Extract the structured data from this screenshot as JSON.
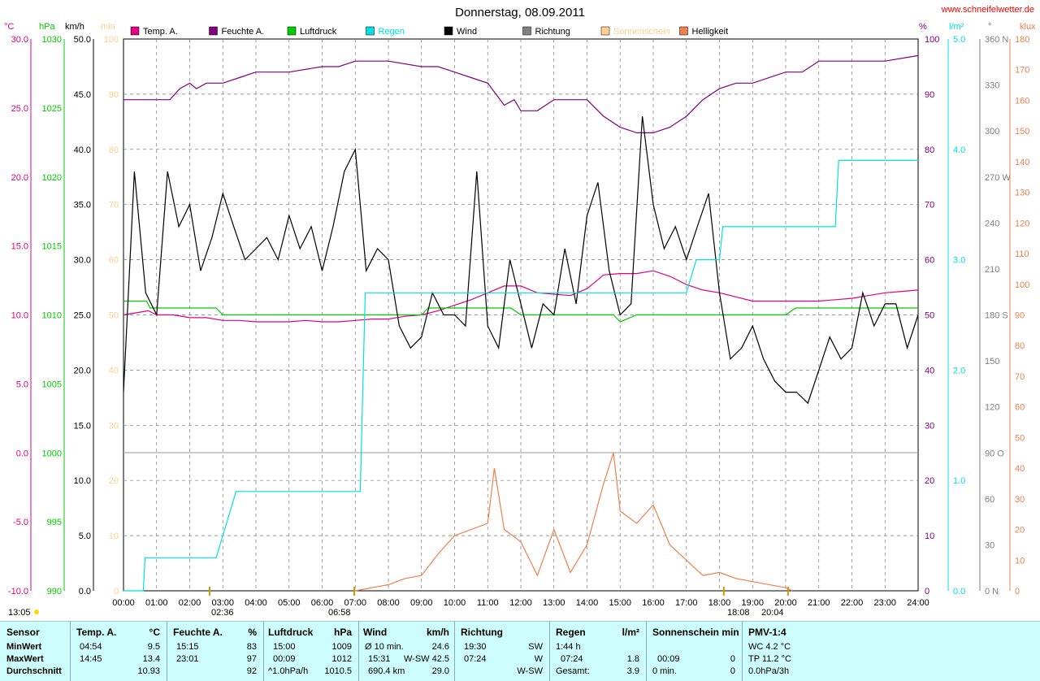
{
  "title": "Donnerstag, 08.09.2011",
  "site": "www.schneifelwetter.de",
  "colors": {
    "temp": "#e0007f",
    "humidity": "#800080",
    "pressure": "#00cc00",
    "rain": "#00e0e0",
    "wind": "#000000",
    "direction": "#808080",
    "sunshine": "#ffd090",
    "brightness": "#f07f4f"
  },
  "units": {
    "temp": "°C",
    "hpa": "hPa",
    "kmh": "km/h",
    "min": "min",
    "pct": "%",
    "lm2": "l/m²",
    "deg": "°",
    "klux": "klux"
  },
  "legend": [
    "Temp. A.",
    "Feuchte A.",
    "Luftdruck",
    "Regen",
    "Wind",
    "Richtung",
    "Sonnenschein",
    "Helligkeit"
  ],
  "axes": {
    "temp": [
      "30.0",
      "25.0",
      "20.0",
      "15.0",
      "10.0",
      "5.0",
      "0.0",
      "-5.0",
      "-10.0"
    ],
    "hpa": [
      "1030",
      "1025",
      "1020",
      "1015",
      "1010",
      "1005",
      "1000",
      "995",
      "990"
    ],
    "kmh": [
      "50.0",
      "45.0",
      "40.0",
      "35.0",
      "30.0",
      "25.0",
      "20.0",
      "15.0",
      "10.0",
      "5.0",
      "0.0"
    ],
    "min": [
      "100",
      "90",
      "80",
      "70",
      "60",
      "50",
      "40",
      "30",
      "20",
      "10",
      "0"
    ],
    "pct": [
      "100",
      "90",
      "80",
      "70",
      "60",
      "50",
      "40",
      "30",
      "20",
      "10",
      "0"
    ],
    "lm2": [
      "5.0",
      "4.0",
      "3.0",
      "2.0",
      "1.0",
      "0.0"
    ],
    "deg": [
      "360 N",
      "330",
      "300",
      "270 W",
      "240",
      "210",
      "180 S",
      "150",
      "120",
      "90 O",
      "60",
      "30",
      "0 N"
    ],
    "klux": [
      "180",
      "170",
      "160",
      "150",
      "140",
      "130",
      "120",
      "110",
      "100",
      "90",
      "80",
      "70",
      "60",
      "50",
      "40",
      "30",
      "20",
      "10",
      "0"
    ],
    "x": [
      "00:00",
      "01:00",
      "02:00",
      "03:00",
      "04:00",
      "05:00",
      "06:00",
      "07:00",
      "08:00",
      "09:00",
      "10:00",
      "11:00",
      "12:00",
      "13:00",
      "14:00",
      "15:00",
      "16:00",
      "17:00",
      "18:00",
      "19:00",
      "20:00",
      "21:00",
      "22:00",
      "23:00",
      "24:00"
    ]
  },
  "time_marks": [
    "13:05",
    "02:36",
    "06:58",
    "18:08",
    "20:04"
  ],
  "chart_data": {
    "type": "line",
    "x_unit": "hour",
    "series": [
      {
        "name": "Temp. A.",
        "unit": "°C",
        "x": [
          0,
          0.5,
          0.75,
          1,
          1.5,
          2,
          2.5,
          3,
          3.5,
          4,
          4.5,
          5,
          5.5,
          6,
          6.5,
          7,
          7.5,
          8,
          8.5,
          9,
          9.5,
          10,
          10.5,
          11,
          11.5,
          12,
          12.5,
          13,
          13.5,
          14,
          14.5,
          15,
          15.5,
          16,
          16.5,
          17,
          17.5,
          18,
          18.5,
          19,
          19.5,
          20,
          20.5,
          21,
          21.5,
          22,
          22.5,
          23,
          23.5,
          24
        ],
        "values": [
          10.0,
          10.2,
          10.3,
          10.0,
          10.0,
          9.8,
          9.8,
          9.6,
          9.6,
          9.5,
          9.5,
          9.5,
          9.6,
          9.5,
          9.5,
          9.6,
          9.7,
          9.7,
          9.9,
          10.0,
          10.3,
          10.7,
          11.1,
          11.6,
          12.1,
          12.1,
          11.6,
          11.5,
          11.4,
          11.9,
          12.9,
          13.0,
          13.0,
          13.2,
          12.8,
          12.2,
          11.8,
          11.6,
          11.3,
          11.0,
          11.0,
          11.0,
          11.0,
          11.0,
          11.1,
          11.2,
          11.4,
          11.6,
          11.7,
          11.8
        ]
      },
      {
        "name": "Feuchte A.",
        "unit": "%",
        "x": [
          0,
          1.4,
          1.7,
          2,
          2.2,
          2.5,
          3,
          3.5,
          4,
          5,
          6,
          6.5,
          7,
          8,
          9,
          9.5,
          10,
          10.5,
          11,
          11.5,
          11.8,
          12,
          12.5,
          13,
          14,
          14.5,
          15,
          15.5,
          16,
          16.5,
          17,
          17.5,
          18,
          18.5,
          19,
          20,
          20.5,
          21,
          22,
          23,
          24
        ],
        "values": [
          89,
          89,
          91,
          92,
          91,
          92,
          92,
          93,
          94,
          94,
          95,
          95,
          96,
          96,
          95,
          95,
          94,
          93,
          92,
          88,
          89,
          87,
          87,
          89,
          89,
          86,
          84,
          83,
          83,
          84,
          86,
          89,
          91,
          92,
          92,
          94,
          94,
          96,
          96,
          96,
          97
        ]
      },
      {
        "name": "Luftdruck",
        "unit": "hPa",
        "x": [
          0,
          0.7,
          0.8,
          1,
          2,
          2.8,
          3,
          4,
          5,
          6,
          7,
          8,
          9,
          9.2,
          10,
          11,
          11.5,
          11.7,
          12,
          12.5,
          13,
          14,
          14.8,
          15,
          15.5,
          16,
          17,
          18,
          19,
          20,
          20.3,
          21,
          22,
          23,
          24
        ],
        "values": [
          1011,
          1011,
          1010.5,
          1010.5,
          1010.5,
          1010.5,
          1010,
          1010,
          1010,
          1010,
          1010,
          1010,
          1010,
          1010.5,
          1010.5,
          1010.5,
          1010.5,
          1010.5,
          1010,
          1010,
          1010,
          1010,
          1010,
          1009.5,
          1010,
          1010,
          1010,
          1010,
          1010,
          1010,
          1010.5,
          1010.5,
          1010.5,
          1010.5,
          1010.5
        ]
      },
      {
        "name": "Wind",
        "unit": "km/h",
        "x": [
          0,
          0.33,
          0.67,
          1,
          1.33,
          1.67,
          2,
          2.33,
          2.67,
          3,
          3.33,
          3.67,
          4,
          4.33,
          4.67,
          5,
          5.33,
          5.67,
          6,
          6.33,
          6.67,
          7,
          7.33,
          7.67,
          8,
          8.33,
          8.67,
          9,
          9.33,
          9.67,
          10,
          10.33,
          10.67,
          11,
          11.33,
          11.67,
          12,
          12.33,
          12.67,
          13,
          13.33,
          13.67,
          14,
          14.33,
          14.67,
          15,
          15.33,
          15.67,
          16,
          16.33,
          16.67,
          17,
          17.33,
          17.67,
          18,
          18.33,
          18.67,
          19,
          19.33,
          19.67,
          20,
          20.33,
          20.67,
          21,
          21.33,
          21.67,
          22,
          22.33,
          22.67,
          23,
          23.33,
          23.67,
          24
        ],
        "values": [
          18,
          38,
          27,
          25,
          38,
          33,
          35,
          29,
          32,
          36,
          33,
          30,
          31,
          32,
          30,
          34,
          31,
          33,
          29,
          33,
          38,
          40,
          29,
          31,
          30,
          24,
          22,
          23,
          27,
          25,
          25,
          24,
          38,
          24,
          22,
          30,
          26,
          22,
          26,
          25,
          31,
          26,
          34,
          37,
          29,
          25,
          26,
          43,
          35,
          31,
          33,
          30,
          33,
          36,
          27,
          21,
          22,
          24,
          21,
          19,
          18,
          18,
          17,
          20,
          23,
          21,
          22,
          27,
          24,
          26,
          26,
          22,
          25
        ]
      },
      {
        "name": "Regen",
        "unit": "l/m²",
        "x": [
          0,
          0.6,
          0.65,
          2.8,
          3.4,
          4,
          5,
          6,
          7,
          7.15,
          7.3,
          8,
          9,
          10,
          11,
          12,
          13,
          14,
          15,
          16,
          17,
          17.3,
          18,
          18.1,
          19,
          20,
          21,
          21.5,
          21.6,
          22,
          22.5,
          23,
          24
        ],
        "values": [
          0,
          0,
          0.3,
          0.3,
          0.9,
          0.9,
          0.9,
          0.9,
          0.9,
          0.9,
          2.7,
          2.7,
          2.7,
          2.7,
          2.7,
          2.7,
          2.7,
          2.7,
          2.7,
          2.7,
          2.7,
          3.0,
          3.0,
          3.3,
          3.3,
          3.3,
          3.3,
          3.3,
          3.9,
          3.9,
          3.9,
          3.9,
          3.9
        ]
      },
      {
        "name": "Helligkeit",
        "unit": "klux",
        "x": [
          7,
          7.5,
          8,
          8.5,
          9,
          9.5,
          10,
          10.5,
          11,
          11.2,
          11.5,
          12,
          12.5,
          13,
          13.5,
          14,
          14.5,
          14.8,
          15,
          15.5,
          16,
          16.5,
          17,
          17.5,
          18,
          18.5,
          19,
          20,
          20.2
        ],
        "values": [
          0,
          1,
          2,
          4,
          5,
          12,
          18,
          20,
          22,
          40,
          20,
          16,
          5,
          20,
          6,
          15,
          35,
          45,
          26,
          22,
          28,
          15,
          10,
          5,
          6,
          4,
          3,
          1,
          0
        ]
      }
    ],
    "xlim": [
      0,
      24
    ],
    "ylim_wind": [
      0,
      50
    ],
    "grid": true,
    "legend_position": "top"
  },
  "stats": {
    "sensor": {
      "title": "Sensor",
      "rows": [
        "MinWert",
        "MaxWert",
        "Durchschnitt"
      ]
    },
    "temp": {
      "title": "Temp. A.",
      "unit": "°C",
      "rows": [
        [
          "04:54",
          "9.5"
        ],
        [
          "14:45",
          "13.4"
        ],
        [
          "",
          "10.93"
        ]
      ]
    },
    "hum": {
      "title": "Feuchte A.",
      "unit": "%",
      "rows": [
        [
          "15:15",
          "83"
        ],
        [
          "23:01",
          "97"
        ],
        [
          "",
          "92"
        ]
      ]
    },
    "press": {
      "title": "Luftdruck",
      "unit": "hPa",
      "rows": [
        [
          "15:00",
          "1009"
        ],
        [
          "00:09",
          "1012"
        ],
        [
          "^1.0hPa/h",
          "1010.5"
        ]
      ]
    },
    "wind": {
      "title": "Wind",
      "unit": "km/h",
      "rows": [
        [
          "Ø 10 min.",
          "",
          "24.6"
        ],
        [
          "15:31",
          "W-SW",
          "42.5"
        ],
        [
          "690.4 km",
          "",
          "29.0"
        ]
      ]
    },
    "dir": {
      "title": "Richtung",
      "rows": [
        [
          "19:30",
          "SW"
        ],
        [
          "07:24",
          "W"
        ],
        [
          "",
          "W-SW"
        ]
      ]
    },
    "rain": {
      "title": "Regen",
      "unit": "l/m²",
      "rows": [
        [
          "1:44 h",
          ""
        ],
        [
          "07:24",
          "1.8"
        ],
        [
          "Gesamt:",
          "3.9"
        ]
      ]
    },
    "sun": {
      "title": "Sonnenschein min",
      "rows": [
        [
          "",
          ""
        ],
        [
          "00:09",
          "0"
        ],
        [
          "0 min.",
          "0"
        ]
      ]
    },
    "pmv": {
      "title": "PMV-1:4",
      "rows": [
        "WC 4.2 °C",
        "TP 11.2 °C",
        "0.0hPa/3h"
      ]
    }
  }
}
